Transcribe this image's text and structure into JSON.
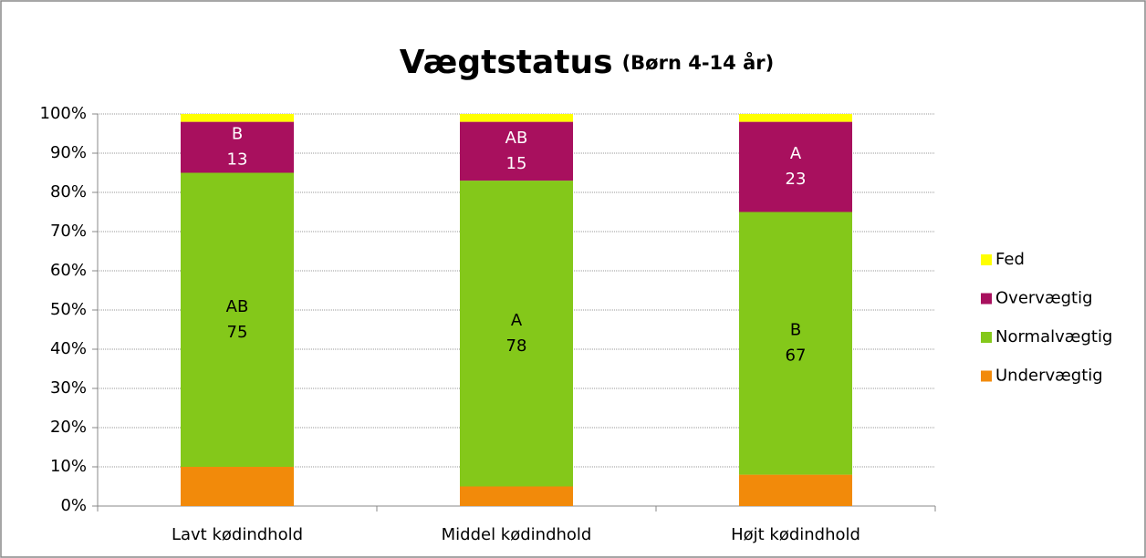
{
  "chart_data": {
    "type": "stacked_bar",
    "title": "Vægtstatus",
    "subtitle": "(Børn 4-14 år)",
    "categories": [
      "Lavt kødindhold",
      "Middel kødindhold",
      "Højt kødindhold"
    ],
    "series": [
      {
        "name": "Undervægtig",
        "color": "#f28a0a",
        "values": [
          10,
          5,
          8
        ]
      },
      {
        "name": "Normalvægtig",
        "color": "#84c81a",
        "values": [
          75,
          78,
          67
        ],
        "group_letters": [
          "AB",
          "A",
          "B"
        ],
        "label_color": "#000000"
      },
      {
        "name": "Overvægtig",
        "color": "#a8105e",
        "values": [
          13,
          15,
          23
        ],
        "group_letters": [
          "B",
          "AB",
          "A"
        ],
        "label_color": "#ffffff"
      },
      {
        "name": "Fed",
        "color": "#ffff00",
        "values": [
          2,
          2,
          2
        ]
      }
    ],
    "ylim": [
      0,
      100
    ],
    "yticks": [
      {
        "value": 0,
        "label": "0%"
      },
      {
        "value": 10,
        "label": "10%"
      },
      {
        "value": 20,
        "label": "20%"
      },
      {
        "value": 30,
        "label": "30%"
      },
      {
        "value": 40,
        "label": "40%"
      },
      {
        "value": 50,
        "label": "50%"
      },
      {
        "value": 60,
        "label": "60%"
      },
      {
        "value": 70,
        "label": "70%"
      },
      {
        "value": 80,
        "label": "80%"
      },
      {
        "value": 90,
        "label": "90%"
      },
      {
        "value": 100,
        "label": "100%"
      }
    ],
    "grid": true,
    "legend": "right"
  }
}
